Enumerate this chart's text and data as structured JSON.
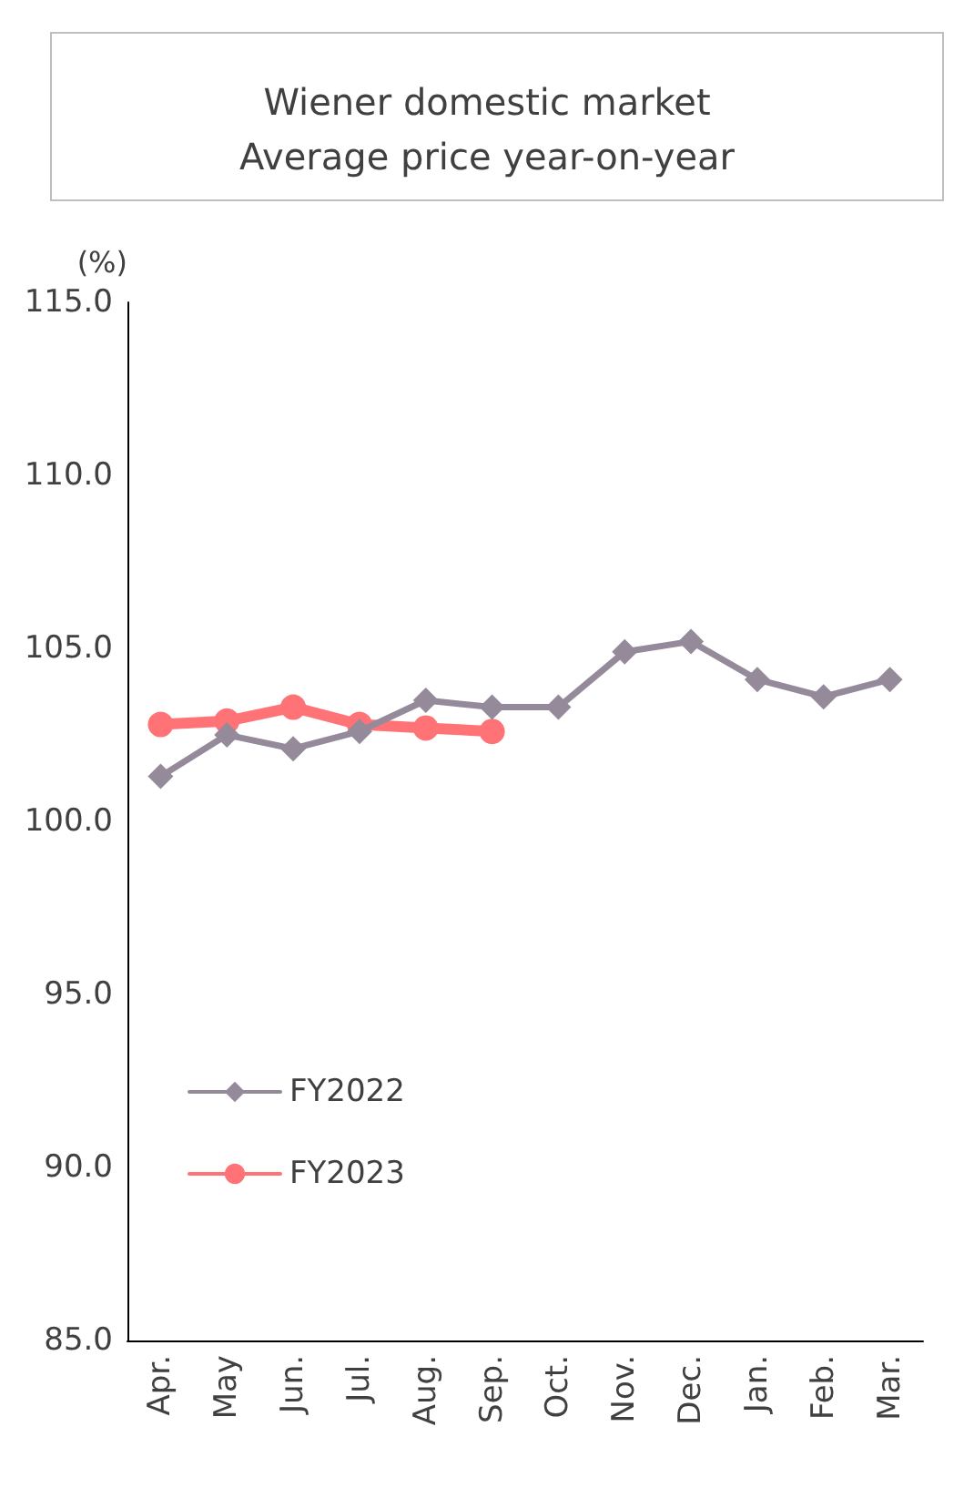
{
  "chart_data": {
    "type": "line",
    "title": "Wiener domestic market\nAverage price year-on-year",
    "ylabel": "(%)",
    "categories": [
      "Apr.",
      "May",
      "Jun.",
      "Jul.",
      "Aug.",
      "Sep.",
      "Oct.",
      "Nov.",
      "Dec.",
      "Jan.",
      "Feb.",
      "Mar."
    ],
    "series": [
      {
        "name": "FY2022",
        "color": "#948a9a",
        "marker": "diamond",
        "values": [
          101.3,
          102.5,
          102.1,
          102.6,
          103.5,
          103.3,
          103.3,
          104.9,
          105.2,
          104.1,
          103.6,
          104.1
        ]
      },
      {
        "name": "FY2023",
        "color": "#ff7377",
        "marker": "circle",
        "values": [
          102.8,
          102.9,
          103.3,
          102.8,
          102.7,
          102.6,
          null,
          null,
          null,
          null,
          null,
          null
        ]
      }
    ],
    "ylim": [
      85,
      115
    ],
    "yticks": [
      {
        "value": 85,
        "label": "85.0"
      },
      {
        "value": 90,
        "label": "90.0"
      },
      {
        "value": 95,
        "label": "95.0"
      },
      {
        "value": 100,
        "label": "100.0"
      },
      {
        "value": 105,
        "label": "105.0"
      },
      {
        "value": 110,
        "label": "110.0"
      },
      {
        "value": 115,
        "label": "115.0"
      }
    ],
    "legend": "bottom left",
    "grid": false
  }
}
